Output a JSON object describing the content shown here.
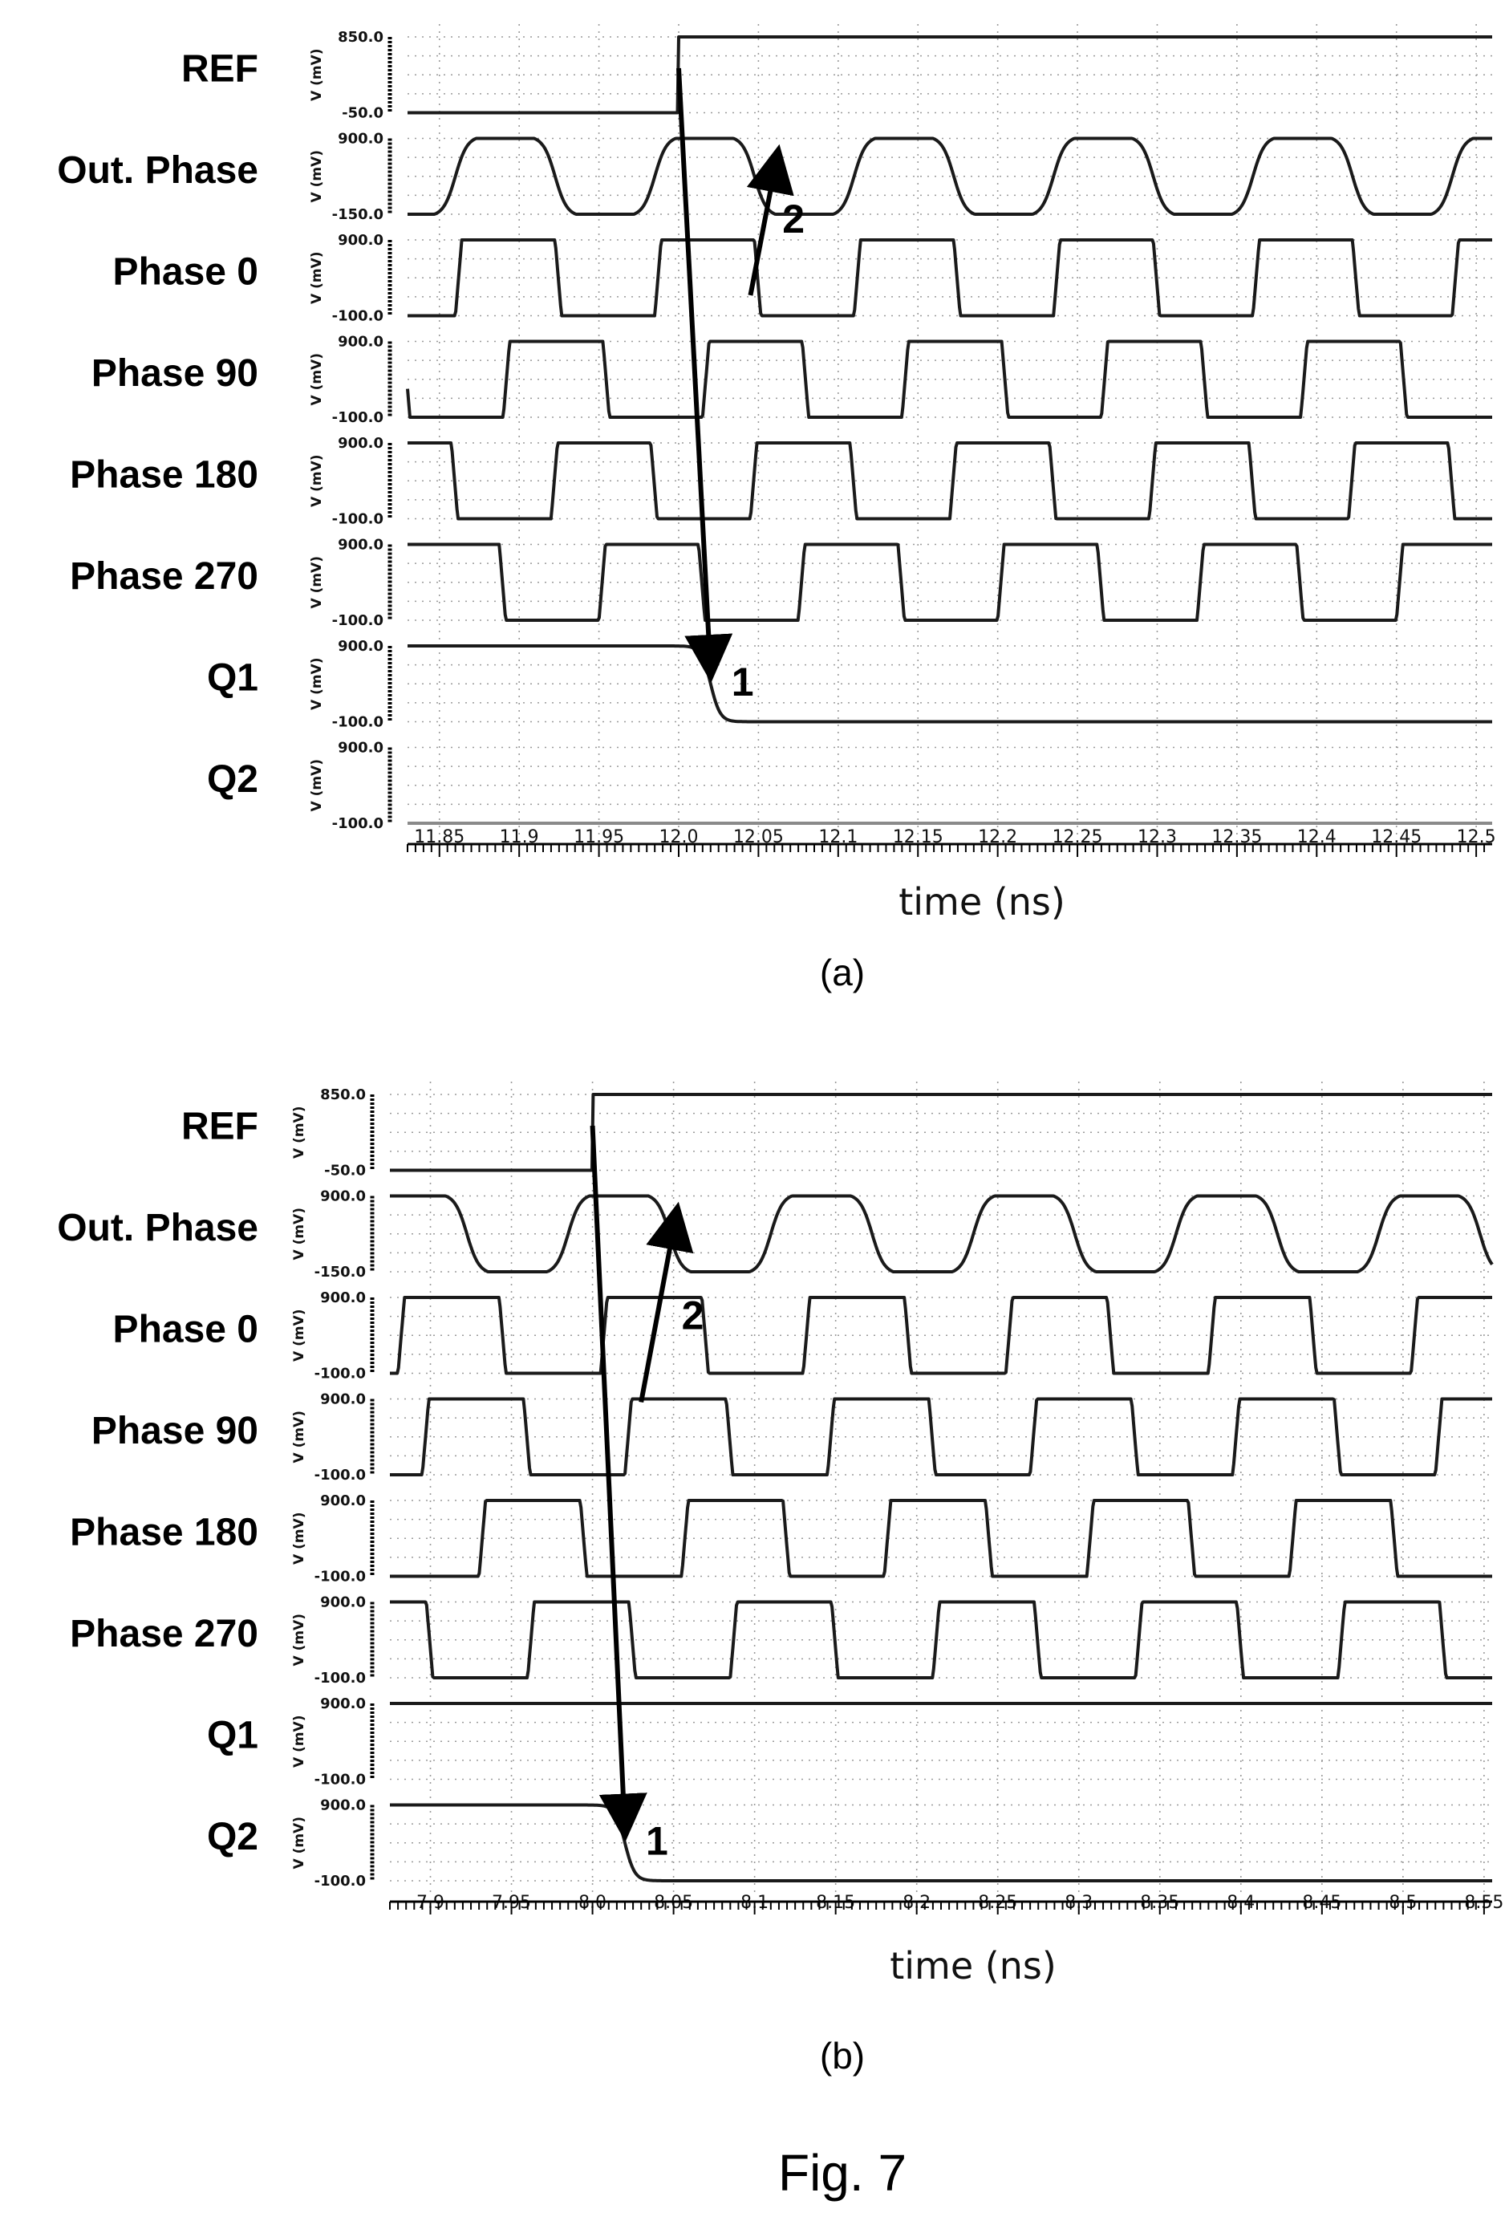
{
  "caption": "Fig. 7",
  "annotations": [
    "1",
    "2"
  ],
  "chart_data": [
    {
      "subplot": "(a)",
      "type": "line",
      "xlabel": "time (ns)",
      "xlim": [
        11.83,
        12.51
      ],
      "xticks": [
        "11.85",
        "11.9",
        "11.95",
        "12.0",
        "12.05",
        "12.1",
        "12.15",
        "12.2",
        "12.25",
        "12.3",
        "12.35",
        "12.4",
        "12.45",
        "12.5"
      ],
      "yunit": "V (mV)",
      "ref_edge_ns": 12.0,
      "q_switch_ns": 12.02,
      "arrow_1": {
        "from_ns": 12.0,
        "to_ns": 12.02,
        "label": "1"
      },
      "arrow_2": {
        "from_ns": 12.045,
        "to_ns": 12.062,
        "label": "2"
      },
      "period_ns": 0.125,
      "series": [
        {
          "name": "REF",
          "ytop": "850.0",
          "ybot": "-50.0",
          "kind": "step",
          "values": [
            -50,
            850
          ],
          "step_ns": 12.0
        },
        {
          "name": "Out. Phase",
          "ytop": "900.0",
          "ybot": "-150.0",
          "kind": "sine",
          "values": [
            -150,
            900
          ],
          "phase_ns": 11.86
        },
        {
          "name": "Phase 0",
          "ytop": "900.0",
          "ybot": "-100.0",
          "kind": "square",
          "values": [
            -100,
            900
          ],
          "rise_ns": 11.86
        },
        {
          "name": "Phase 90",
          "ytop": "900.0",
          "ybot": "-100.0",
          "kind": "square",
          "values": [
            -100,
            900
          ],
          "rise_ns": 11.89
        },
        {
          "name": "Phase 180",
          "ytop": "900.0",
          "ybot": "-100.0",
          "kind": "square",
          "values": [
            -100,
            900
          ],
          "rise_ns": 11.92
        },
        {
          "name": "Phase 270",
          "ytop": "900.0",
          "ybot": "-100.0",
          "kind": "square",
          "values": [
            -100,
            900
          ],
          "rise_ns": 11.95
        },
        {
          "name": "Q1",
          "ytop": "900.0",
          "ybot": "-100.0",
          "kind": "fall",
          "values": [
            900,
            -100
          ],
          "switch_ns": 12.02
        },
        {
          "name": "Q2",
          "ytop": "900.0",
          "ybot": "-100.0",
          "kind": "flat",
          "values": [
            -100,
            -100
          ]
        }
      ]
    },
    {
      "subplot": "(b)",
      "type": "line",
      "xlabel": "time (ns)",
      "xlim": [
        7.875,
        8.555
      ],
      "xticks": [
        "7.9",
        "7.95",
        "8.0",
        "8.05",
        "8.1",
        "8.15",
        "8.2",
        "8.25",
        "8.3",
        "8.35",
        "8.4",
        "8.45",
        "8.5",
        "8.55"
      ],
      "yunit": "V (mV)",
      "ref_edge_ns": 8.0,
      "q_switch_ns": 8.02,
      "arrow_1": {
        "from_ns": 8.0,
        "to_ns": 8.02,
        "label": "1"
      },
      "arrow_2": {
        "from_ns": 8.03,
        "to_ns": 8.052,
        "label": "2"
      },
      "period_ns": 0.125,
      "series": [
        {
          "name": "REF",
          "ytop": "850.0",
          "ybot": "-50.0",
          "kind": "step",
          "values": [
            -50,
            850
          ],
          "step_ns": 8.0
        },
        {
          "name": "Out. Phase",
          "ytop": "900.0",
          "ybot": "-150.0",
          "kind": "sine",
          "values": [
            -150,
            900
          ],
          "phase_ns": 7.86
        },
        {
          "name": "Phase 0",
          "ytop": "900.0",
          "ybot": "-100.0",
          "kind": "square",
          "values": [
            -100,
            900
          ],
          "rise_ns": 7.88
        },
        {
          "name": "Phase 90",
          "ytop": "900.0",
          "ybot": "-100.0",
          "kind": "square",
          "values": [
            -100,
            900
          ],
          "rise_ns": 7.895
        },
        {
          "name": "Phase 180",
          "ytop": "900.0",
          "ybot": "-100.0",
          "kind": "square",
          "values": [
            -100,
            900
          ],
          "rise_ns": 7.93
        },
        {
          "name": "Phase 270",
          "ytop": "900.0",
          "ybot": "-100.0",
          "kind": "square",
          "values": [
            -100,
            900
          ],
          "rise_ns": 7.96
        },
        {
          "name": "Q1",
          "ytop": "900.0",
          "ybot": "-100.0",
          "kind": "flat",
          "values": [
            900,
            900
          ]
        },
        {
          "name": "Q2",
          "ytop": "900.0",
          "ybot": "-100.0",
          "kind": "fall",
          "values": [
            900,
            -100
          ],
          "switch_ns": 8.02
        }
      ]
    }
  ]
}
